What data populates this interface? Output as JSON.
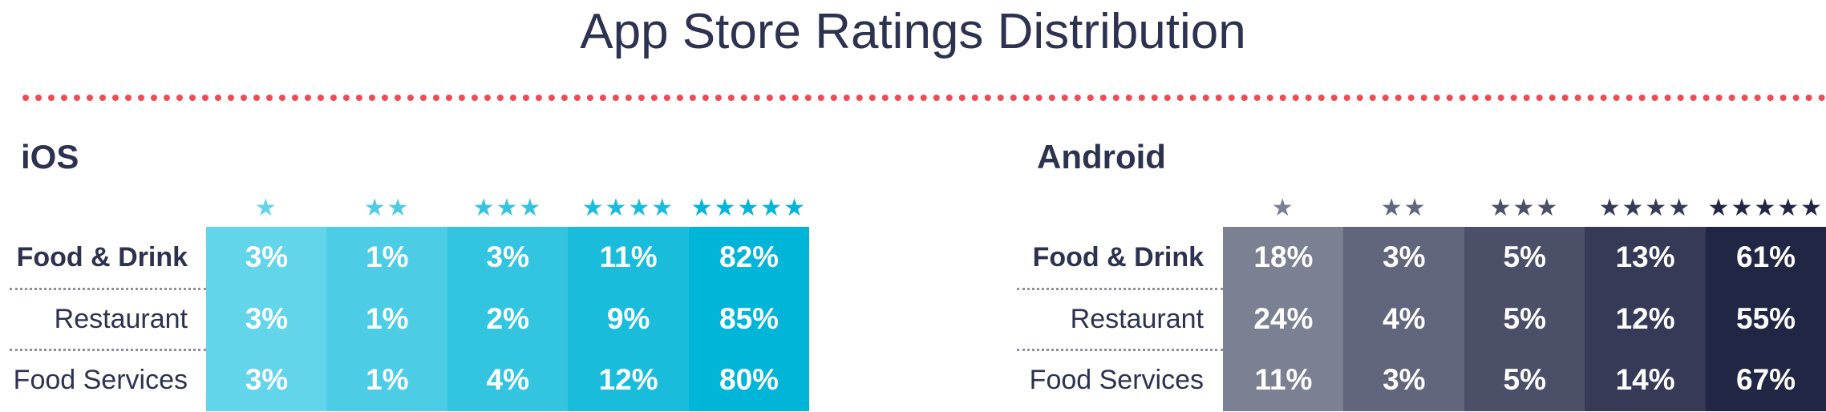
{
  "title": "App Store Ratings Distribution",
  "panels": [
    {
      "name": "iOS",
      "columns": [
        "★",
        "★★",
        "★★★",
        "★★★★",
        "★★★★★"
      ],
      "colors": [
        "#62d5ea",
        "#4ccde5",
        "#33c5df",
        "#19bddb",
        "#00b5d8"
      ],
      "rows": [
        {
          "label": "Food & Drink",
          "values": [
            "3%",
            "1%",
            "3%",
            "11%",
            "82%"
          ]
        },
        {
          "label": "Restaurant",
          "values": [
            "3%",
            "1%",
            "2%",
            "9%",
            "85%"
          ]
        },
        {
          "label": "Food Services",
          "values": [
            "3%",
            "1%",
            "4%",
            "12%",
            "80%"
          ]
        }
      ]
    },
    {
      "name": "Android",
      "columns": [
        "★",
        "★★",
        "★★★",
        "★★★★",
        "★★★★★"
      ],
      "colors": [
        "#7b8093",
        "#62667c",
        "#4b4f68",
        "#363a56",
        "#222645"
      ],
      "rows": [
        {
          "label": "Food & Drink",
          "values": [
            "18%",
            "3%",
            "5%",
            "13%",
            "61%"
          ]
        },
        {
          "label": "Restaurant",
          "values": [
            "24%",
            "4%",
            "5%",
            "12%",
            "55%"
          ]
        },
        {
          "label": "Food Services",
          "values": [
            "11%",
            "3%",
            "5%",
            "14%",
            "67%"
          ]
        }
      ]
    }
  ]
}
